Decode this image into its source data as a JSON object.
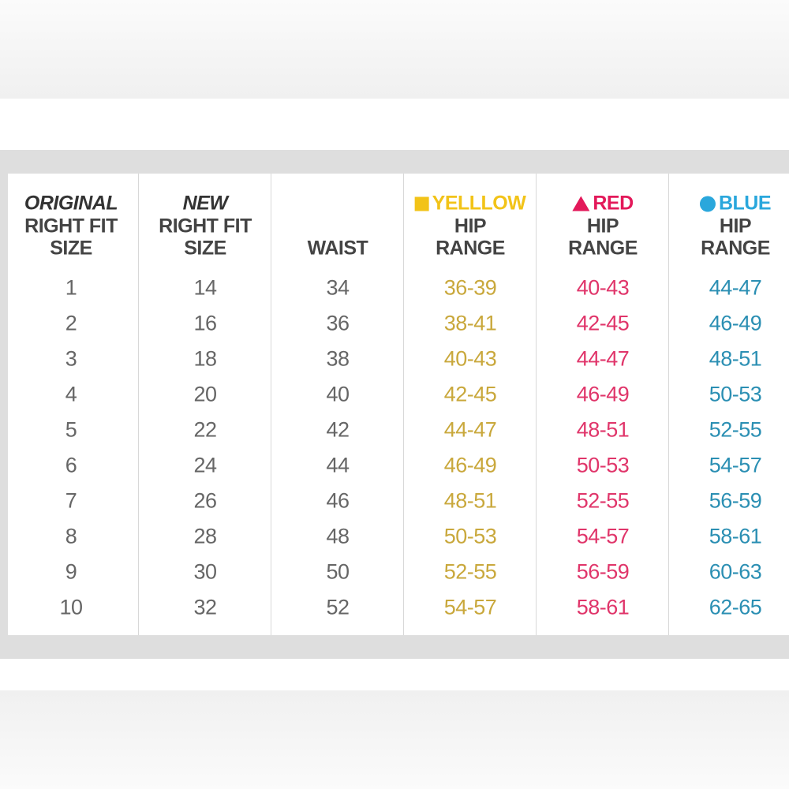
{
  "table": {
    "headers": [
      {
        "lines": [
          "ORIGINAL",
          "RIGHT FIT",
          "SIZE"
        ]
      },
      {
        "lines": [
          "NEW",
          "RIGHT FIT",
          "SIZE"
        ]
      },
      {
        "lines": [
          "WAIST"
        ]
      },
      {
        "lines": [
          "YELLLOW",
          "HIP",
          "RANGE"
        ]
      },
      {
        "lines": [
          "RED",
          "HIP",
          "RANGE"
        ]
      },
      {
        "lines": [
          "BLUE",
          "HIP",
          "RANGE"
        ]
      }
    ],
    "rows": [
      [
        "1",
        "14",
        "34",
        "36-39",
        "40-43",
        "44-47"
      ],
      [
        "2",
        "16",
        "36",
        "38-41",
        "42-45",
        "46-49"
      ],
      [
        "3",
        "18",
        "38",
        "40-43",
        "44-47",
        "48-51"
      ],
      [
        "4",
        "20",
        "40",
        "42-45",
        "46-49",
        "50-53"
      ],
      [
        "5",
        "22",
        "42",
        "44-47",
        "48-51",
        "52-55"
      ],
      [
        "6",
        "24",
        "44",
        "46-49",
        "50-53",
        "54-57"
      ],
      [
        "7",
        "26",
        "46",
        "48-51",
        "52-55",
        "56-59"
      ],
      [
        "8",
        "28",
        "48",
        "50-53",
        "54-57",
        "58-61"
      ],
      [
        "9",
        "30",
        "50",
        "52-55",
        "56-59",
        "60-63"
      ],
      [
        "10",
        "32",
        "52",
        "54-57",
        "58-61",
        "62-65"
      ]
    ]
  }
}
